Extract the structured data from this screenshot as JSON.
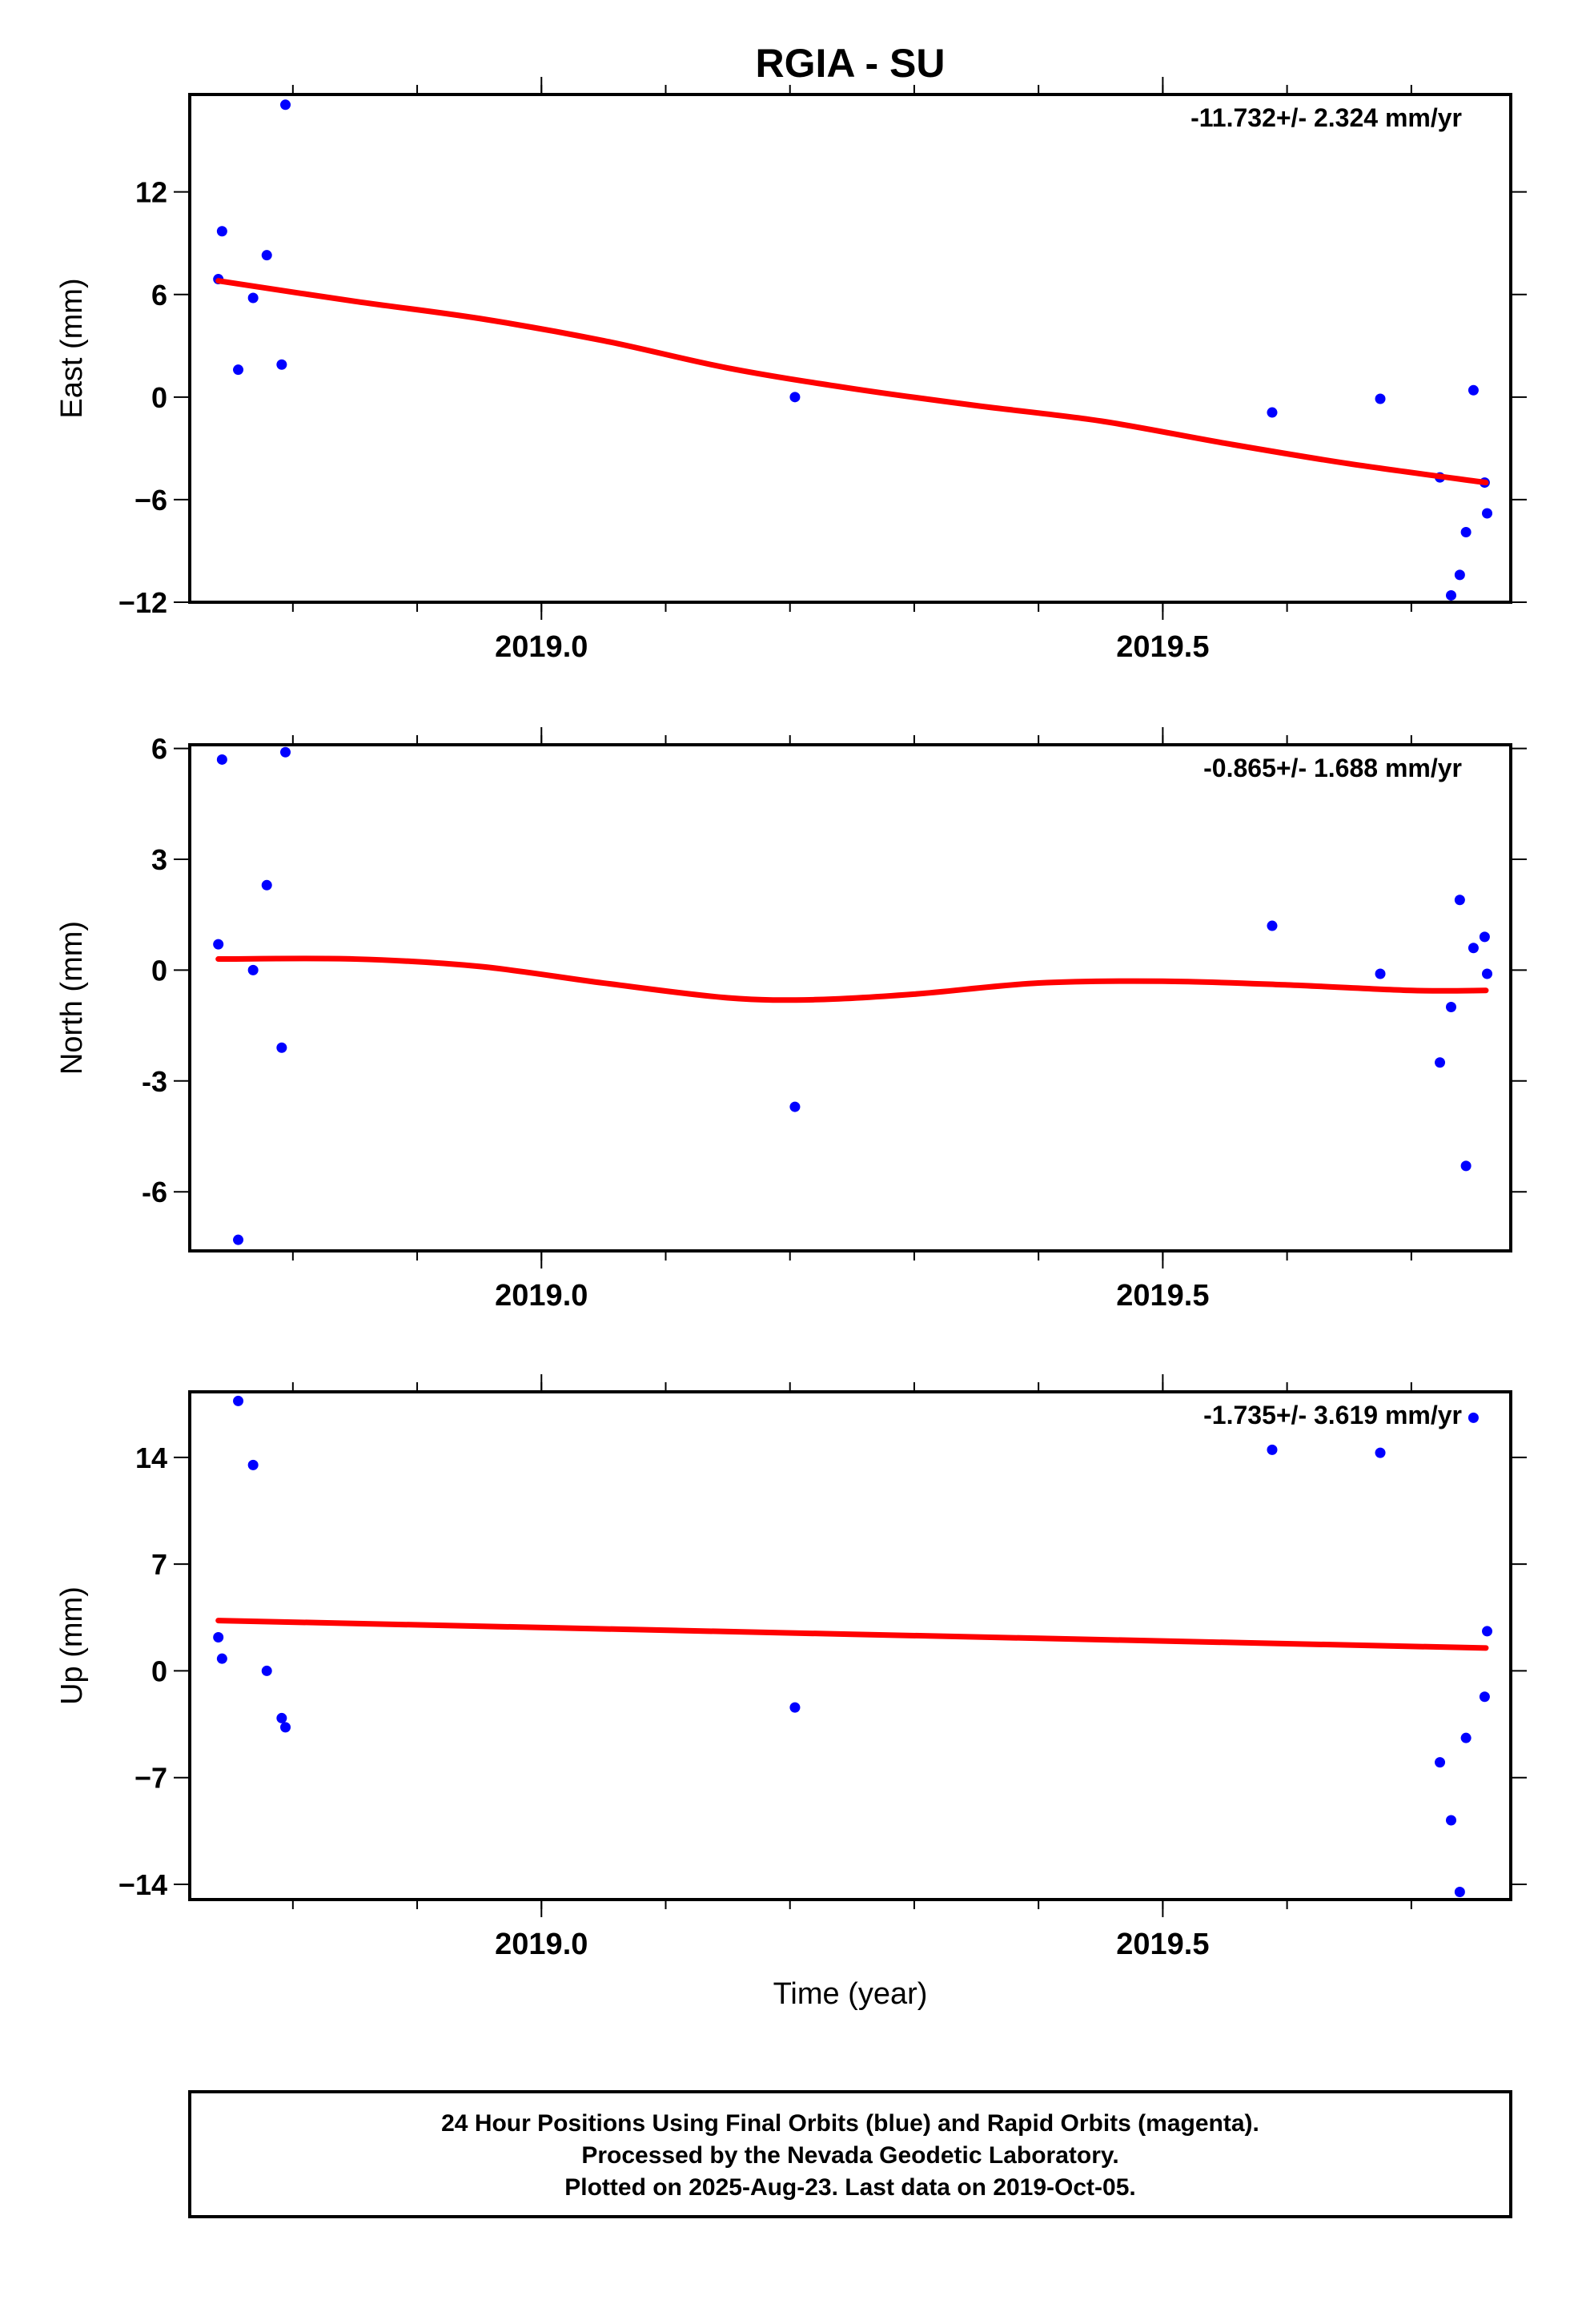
{
  "title": "RGIA - SU",
  "xlabel": "Time (year)",
  "x_tick_labels": [
    "2019.0",
    "2019.5"
  ],
  "colors": {
    "final_orbits": "#0000ff",
    "fit_line": "#ff0000",
    "frame": "#000000"
  },
  "chart_data": [
    {
      "type": "scatter",
      "component": "East",
      "ylabel": "East (mm)",
      "rate_text": "-11.732+/- 2.324 mm/yr",
      "xlim": [
        2018.717,
        2019.78
      ],
      "ylim": [
        -12,
        17.7
      ],
      "yticks": [
        12,
        6,
        0,
        -6,
        -12
      ],
      "ytick_labels": [
        "12",
        "6",
        "0",
        "−6",
        "−12"
      ],
      "x": [
        2018.74,
        2018.743,
        2018.756,
        2018.768,
        2018.779,
        2018.791,
        2018.794,
        2019.204,
        2019.588,
        2019.675,
        2019.723,
        2019.732,
        2019.739,
        2019.744,
        2019.75,
        2019.759,
        2019.761
      ],
      "y": [
        6.9,
        9.7,
        1.6,
        5.8,
        8.3,
        1.9,
        17.1,
        0.0,
        -0.9,
        -0.1,
        -4.7,
        -11.6,
        -10.4,
        -7.9,
        0.4,
        -5.0,
        -6.8
      ],
      "fit": {
        "x": [
          2018.74,
          2018.85,
          2018.95,
          2019.05,
          2019.15,
          2019.25,
          2019.35,
          2019.45,
          2019.55,
          2019.65,
          2019.76
        ],
        "y": [
          6.8,
          5.6,
          4.6,
          3.3,
          1.7,
          0.5,
          -0.5,
          -1.4,
          -2.7,
          -3.9,
          -5.0
        ]
      }
    },
    {
      "type": "scatter",
      "component": "North",
      "ylabel": "North (mm)",
      "rate_text": "-0.865+/- 1.688 mm/yr",
      "xlim": [
        2018.717,
        2019.78
      ],
      "ylim": [
        -7.6,
        6.1
      ],
      "yticks": [
        6,
        3,
        0,
        -3,
        -6
      ],
      "ytick_labels": [
        "6",
        "3",
        "0",
        "-3",
        "-6"
      ],
      "x": [
        2018.74,
        2018.743,
        2018.756,
        2018.768,
        2018.779,
        2018.791,
        2018.794,
        2019.204,
        2019.588,
        2019.675,
        2019.723,
        2019.732,
        2019.739,
        2019.744,
        2019.75,
        2019.759,
        2019.761
      ],
      "y": [
        0.7,
        5.7,
        -7.3,
        0.0,
        2.3,
        -2.1,
        5.9,
        -3.7,
        1.2,
        -0.1,
        -2.5,
        -1.0,
        1.9,
        -5.3,
        0.6,
        0.9,
        -0.1
      ],
      "fit": {
        "x": [
          2018.74,
          2018.85,
          2018.95,
          2019.05,
          2019.15,
          2019.22,
          2019.3,
          2019.4,
          2019.5,
          2019.6,
          2019.7,
          2019.76
        ],
        "y": [
          0.3,
          0.3,
          0.1,
          -0.35,
          -0.75,
          -0.8,
          -0.65,
          -0.35,
          -0.3,
          -0.4,
          -0.55,
          -0.55
        ]
      }
    },
    {
      "type": "scatter",
      "component": "Up",
      "ylabel": "Up (mm)",
      "rate_text": "-1.735+/- 3.619 mm/yr",
      "xlim": [
        2018.717,
        2019.78
      ],
      "ylim": [
        -15,
        18.3
      ],
      "yticks": [
        14,
        7,
        0,
        -7,
        -14
      ],
      "ytick_labels": [
        "14",
        "7",
        "0",
        "−7",
        "−14"
      ],
      "x": [
        2018.74,
        2018.743,
        2018.756,
        2018.768,
        2018.779,
        2018.791,
        2018.794,
        2019.204,
        2019.588,
        2019.675,
        2019.723,
        2019.732,
        2019.739,
        2019.744,
        2019.75,
        2019.759,
        2019.761
      ],
      "y": [
        2.2,
        0.8,
        17.7,
        13.5,
        0.0,
        -3.1,
        -3.7,
        -2.4,
        14.5,
        14.3,
        -6.0,
        -9.8,
        -14.5,
        -4.4,
        16.6,
        -1.7,
        2.6
      ],
      "fit": {
        "x": [
          2018.74,
          2019.76
        ],
        "y": [
          3.3,
          1.5
        ]
      }
    }
  ],
  "footer": {
    "line1": "24 Hour Positions Using Final Orbits (blue) and Rapid Orbits (magenta).",
    "line2": "Processed by the Nevada Geodetic Laboratory.",
    "line3": "Plotted on 2025-Aug-23. Last data on 2019-Oct-05."
  }
}
